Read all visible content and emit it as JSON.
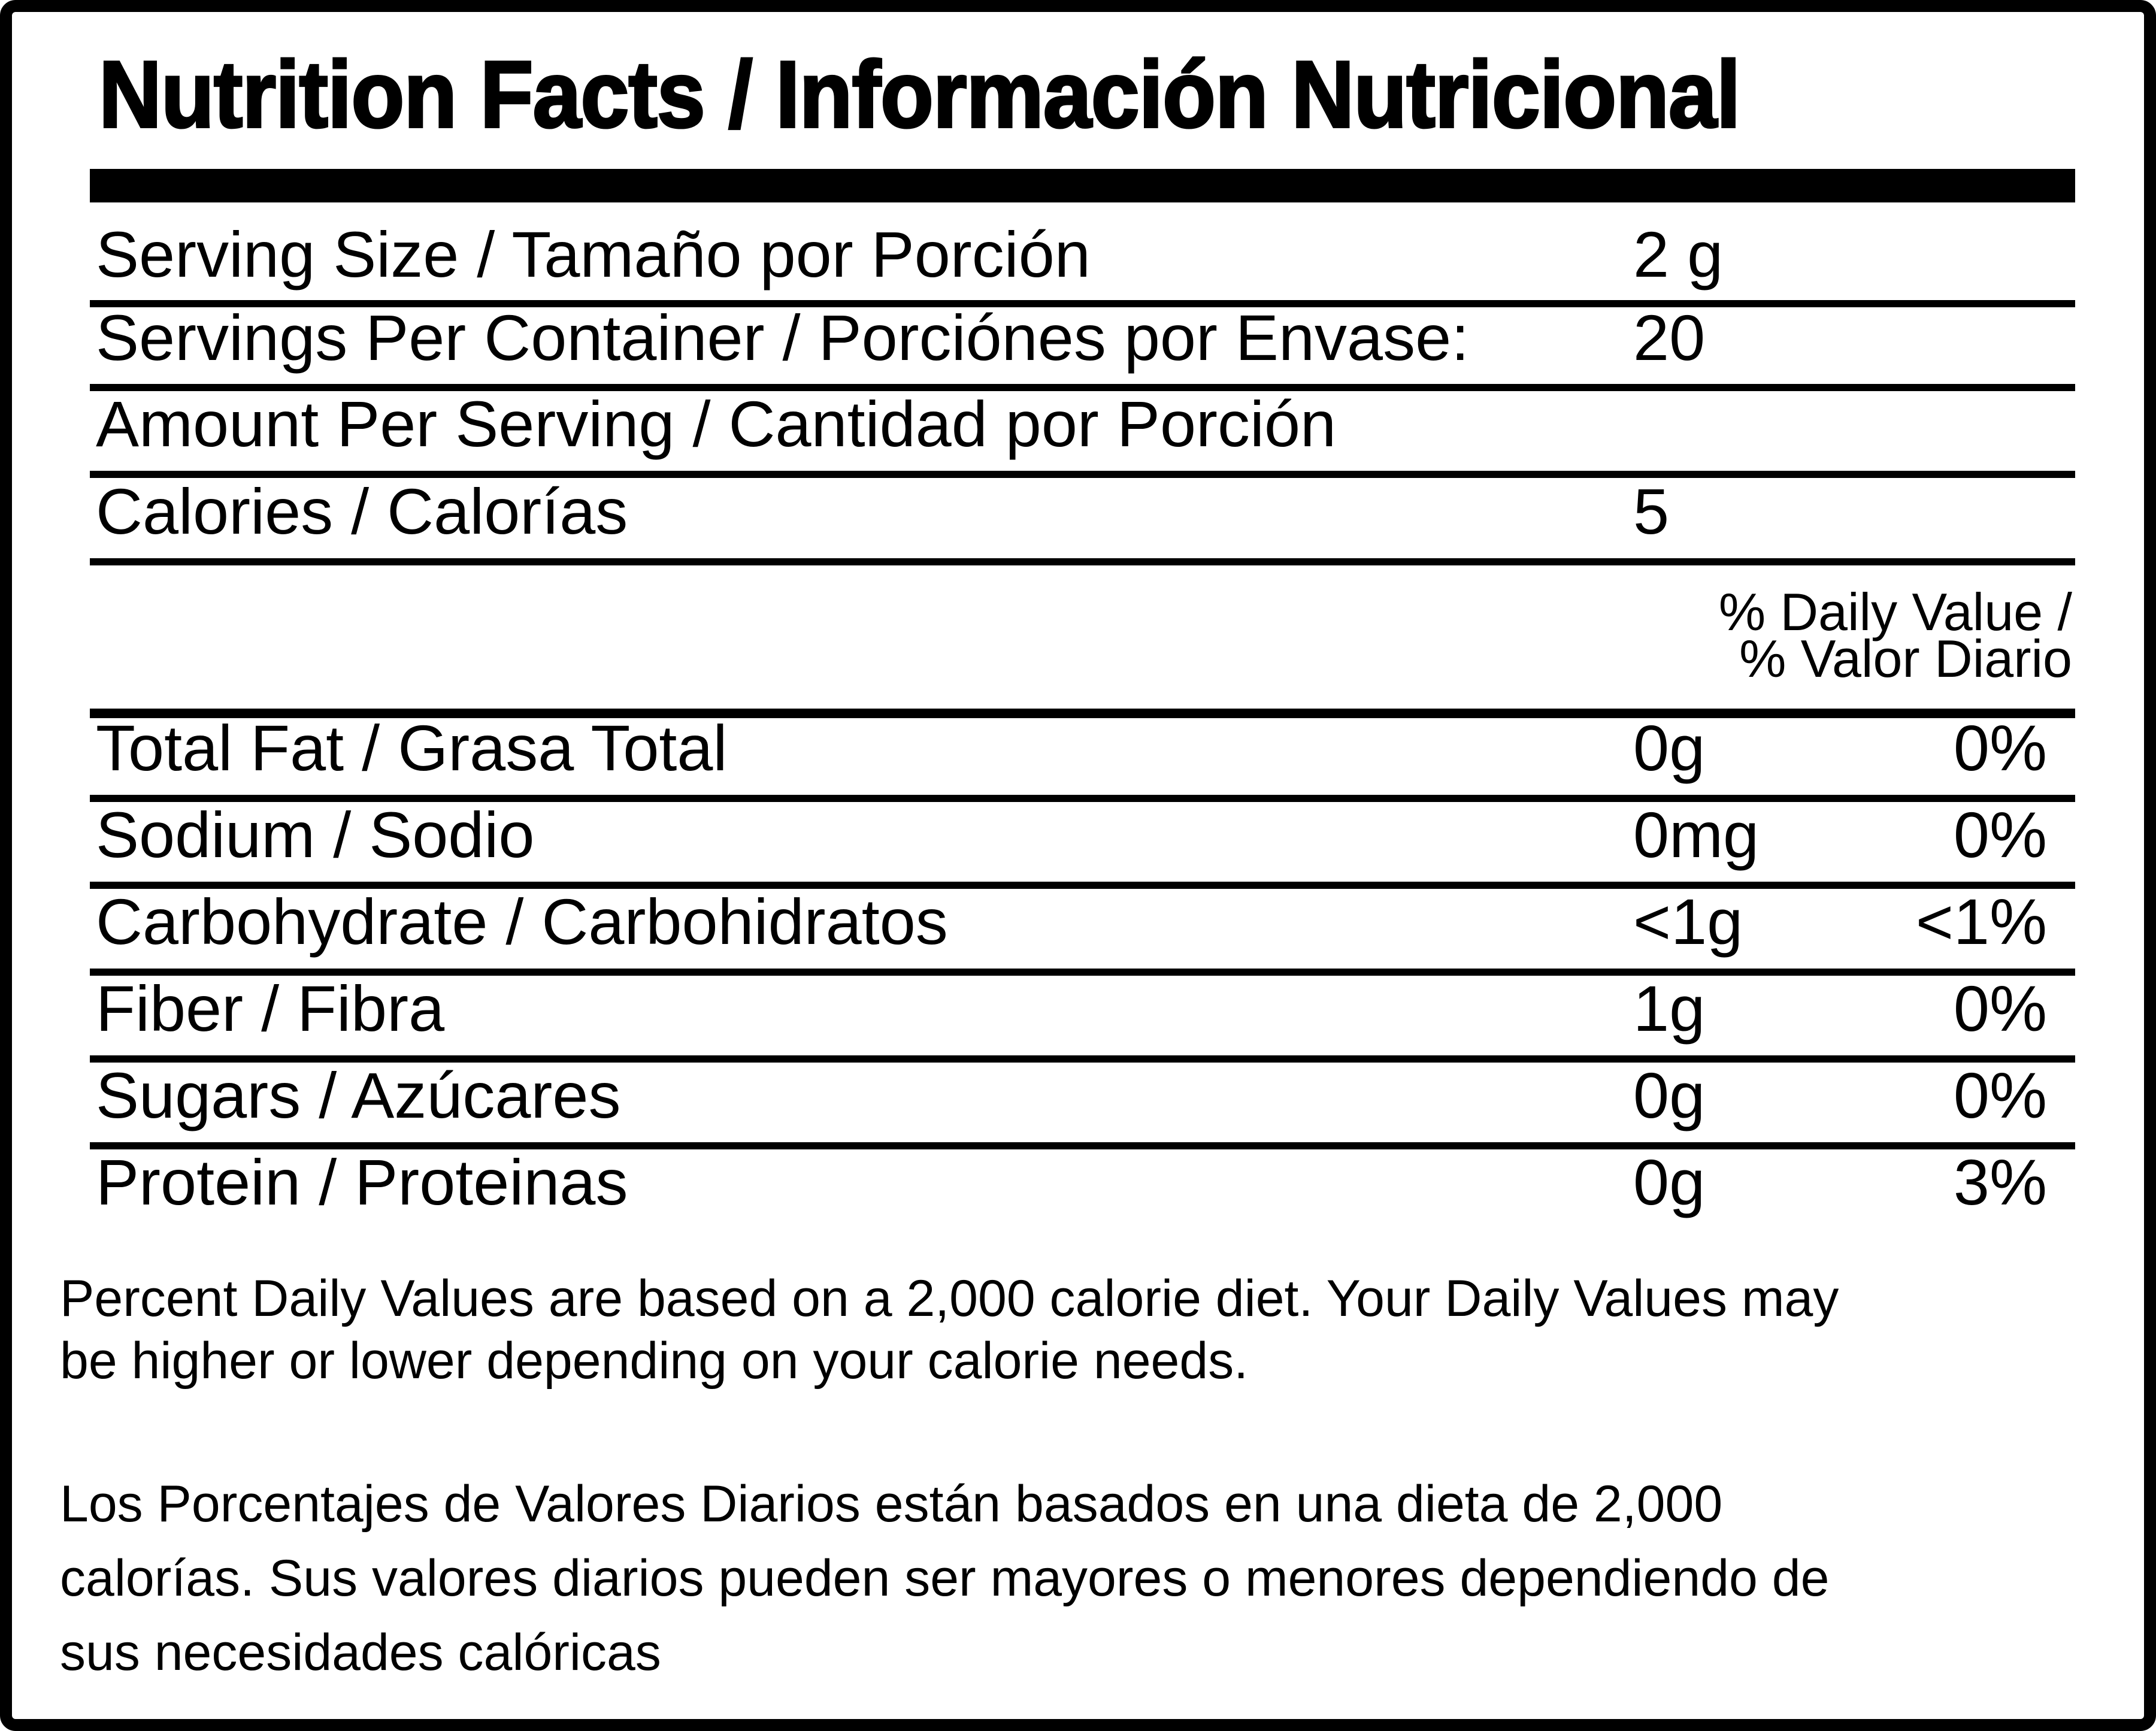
{
  "title": "Nutrition Facts / Información Nutricional",
  "serving_rows": [
    {
      "label": "Serving Size / Tamaño por Porción",
      "value": "2 g"
    },
    {
      "label": "Servings Per Container / Porciónes por Envase:",
      "value": "20"
    },
    {
      "label": "Amount Per Serving / Cantidad por Porción",
      "value": ""
    },
    {
      "label": "Calories / Calorías",
      "value": "5"
    }
  ],
  "daily_value_header": {
    "line1": "% Daily Value /",
    "line2": "% Valor Diario"
  },
  "nutrient_rows": [
    {
      "label": "Total Fat / Grasa Total",
      "amount": "0g",
      "percent": "0%"
    },
    {
      "label": "Sodium / Sodio",
      "amount": "0mg",
      "percent": "0%"
    },
    {
      "label": "Carbohydrate / Carbohidratos",
      "amount": "<1g",
      "percent": "<1%"
    },
    {
      "label": "Fiber / Fibra",
      "amount": "1g",
      "percent": "0%"
    },
    {
      "label": "Sugars / Azúcares",
      "amount": "0g",
      "percent": "0%"
    },
    {
      "label": "Protein / Proteinas",
      "amount": "0g",
      "percent": "3%"
    }
  ],
  "footnotes": {
    "english_lines": [
      "Percent Daily Values are based on a 2,000 calorie diet. Your Daily Values may",
      "be higher or lower depending on your calorie needs."
    ],
    "spanish_lines": [
      "Los Porcentajes de Valores Diarios están basados en una dieta de 2,000",
      "calorías. Sus valores diarios pueden ser mayores o menores dependiendo de",
      "sus necesidades calóricas"
    ]
  },
  "colors": {
    "ink": "#000000",
    "background": "#ffffff"
  }
}
